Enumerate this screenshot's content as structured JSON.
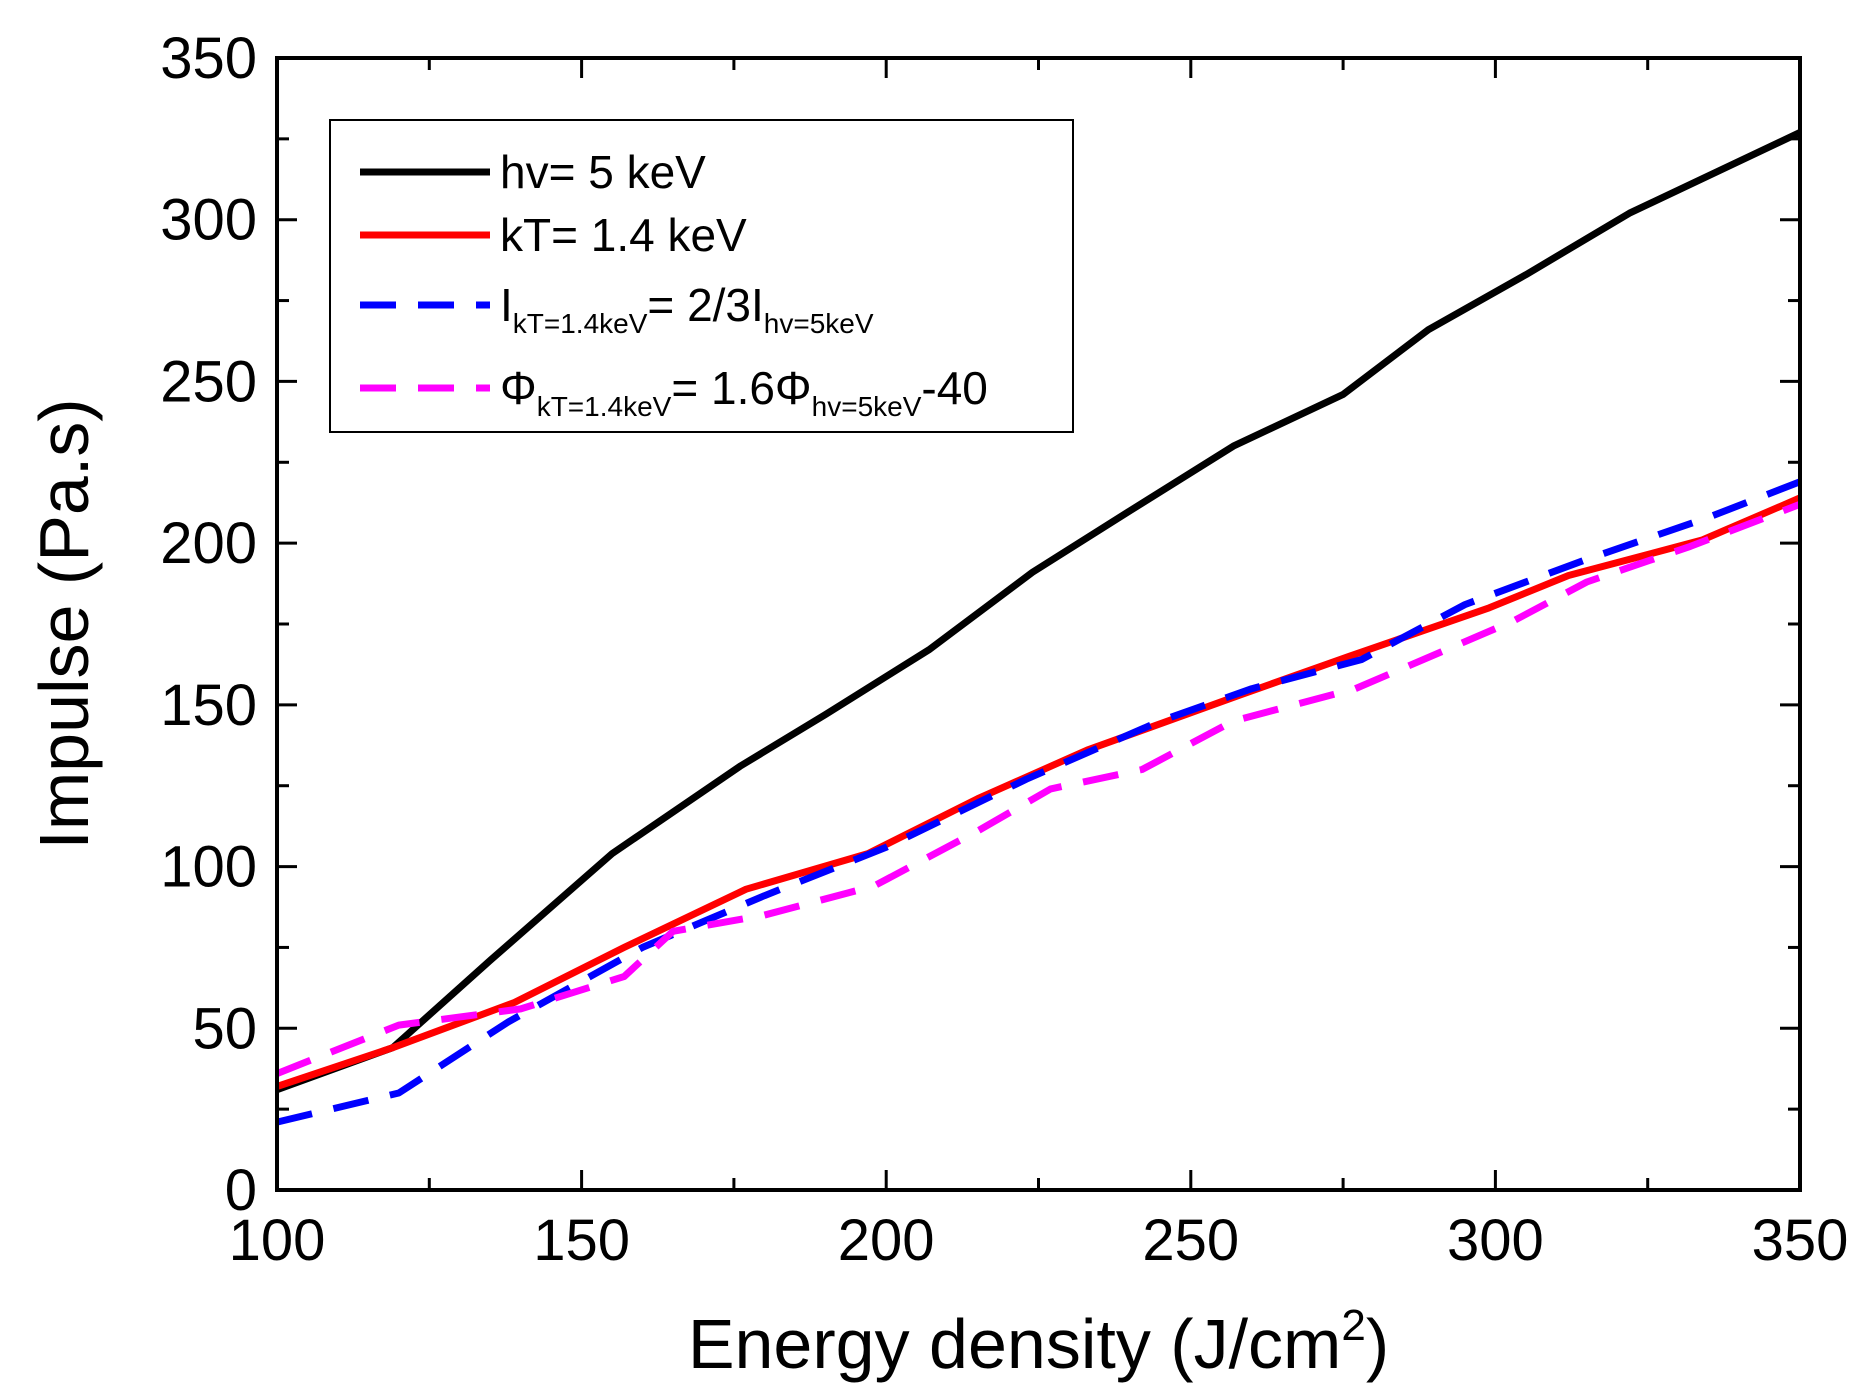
{
  "chart_data": {
    "type": "line",
    "title": "",
    "xlabel": "Energy density (J/cm",
    "xlabel_sup": "2",
    "xlabel_end": ")",
    "ylabel": "Impulse (Pa.s)",
    "xlim": [
      100,
      350
    ],
    "ylim": [
      0,
      350
    ],
    "xticks": [
      100,
      150,
      200,
      250,
      300,
      350
    ],
    "yticks": [
      0,
      50,
      100,
      150,
      200,
      250,
      300,
      350
    ],
    "legend_position": "top-left",
    "series": [
      {
        "name": "hv= 5  keV",
        "color": "#000000",
        "dash": "solid",
        "x": [
          100,
          119,
          135,
          155,
          176,
          190,
          207,
          224,
          240,
          257,
          275,
          289,
          305,
          322,
          350
        ],
        "y": [
          31,
          44,
          71,
          104,
          131,
          147,
          167,
          191,
          210,
          230,
          246,
          266,
          283,
          302,
          327
        ]
      },
      {
        "name": "kT= 1.4  keV",
        "color": "#ff0000",
        "dash": "solid",
        "x": [
          100,
          119,
          139,
          157,
          177,
          197,
          215,
          233,
          258,
          276,
          299,
          312,
          334,
          350
        ],
        "y": [
          32,
          44,
          58,
          75,
          93,
          104,
          121,
          136,
          153,
          165,
          180,
          190,
          201,
          214
        ]
      },
      {
        "name": "I",
        "legend_parts": [
          {
            "text": "I",
            "sub": false
          },
          {
            "text": "kT=1.4keV",
            "sub": true
          },
          {
            "text": "=  2/3I",
            "sub": false
          },
          {
            "text": "hv=5keV",
            "sub": true
          }
        ],
        "color": "#0000ff",
        "dash": "dashed",
        "x": [
          100,
          120,
          138,
          160,
          180,
          200,
          223,
          245,
          260,
          278,
          295,
          315,
          335,
          350
        ],
        "y": [
          21,
          30,
          52,
          75,
          91,
          106,
          127,
          145,
          155,
          164,
          181,
          195,
          208,
          219
        ]
      },
      {
        "name": "Phi",
        "legend_parts": [
          {
            "text": "Φ",
            "sub": false
          },
          {
            "text": "kT=1.4keV",
            "sub": true
          },
          {
            "text": "=  1.6Φ",
            "sub": false
          },
          {
            "text": "hv=5keV",
            "sub": true
          },
          {
            "text": "-40",
            "sub": false
          }
        ],
        "color": "#ff00ff",
        "dash": "dashed",
        "x": [
          100,
          120,
          140,
          157,
          165,
          180,
          198,
          215,
          227,
          242,
          257,
          277,
          303,
          315,
          332,
          350
        ],
        "y": [
          36,
          51,
          56,
          66,
          80,
          85,
          94,
          111,
          124,
          130,
          145,
          155,
          176,
          188,
          199,
          212
        ]
      }
    ]
  }
}
